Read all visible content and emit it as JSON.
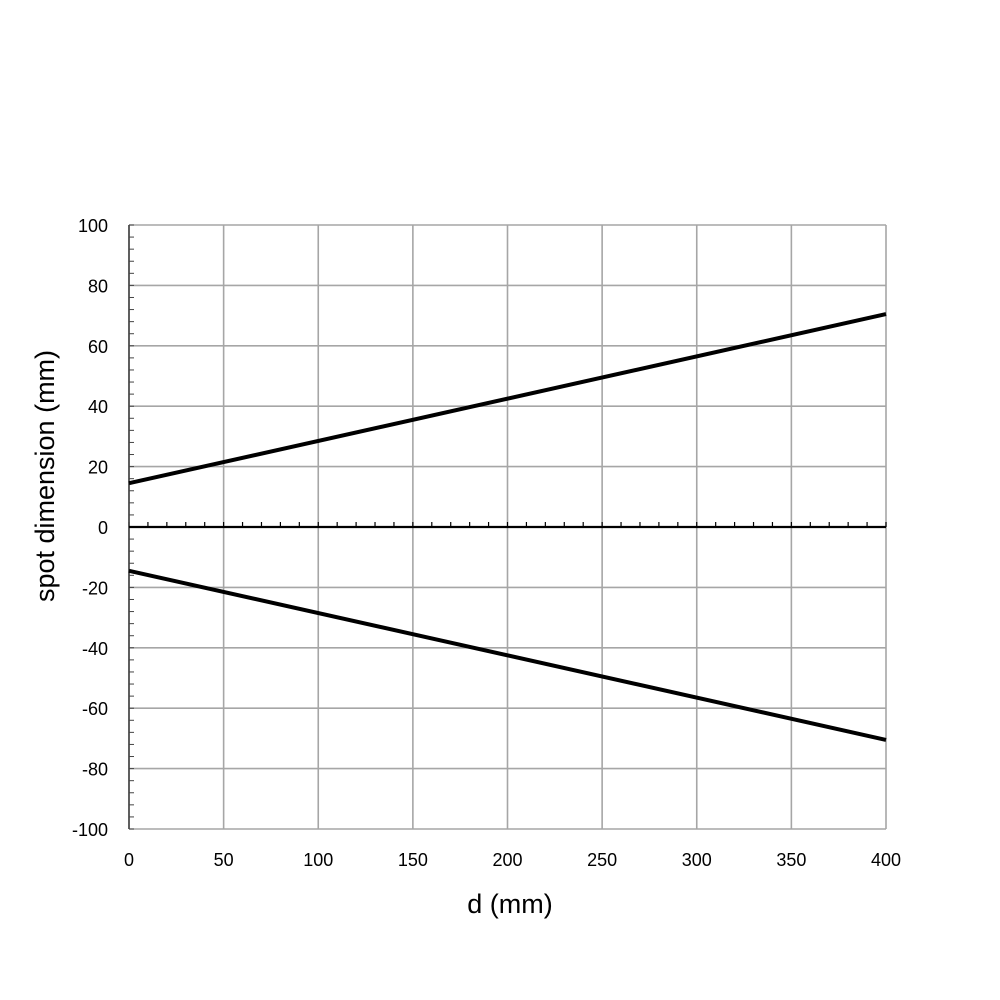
{
  "chart_data": {
    "type": "line",
    "title": "",
    "xlabel": "d (mm)",
    "ylabel": "spot dimension (mm)",
    "xlim": [
      0,
      400
    ],
    "ylim": [
      -100,
      100
    ],
    "x_ticks": [
      0,
      50,
      100,
      150,
      200,
      250,
      300,
      350,
      400
    ],
    "y_ticks": [
      -100,
      -80,
      -60,
      -40,
      -20,
      0,
      20,
      40,
      60,
      80,
      100
    ],
    "x_tick_labels": [
      "0",
      "50",
      "100",
      "150",
      "200",
      "250",
      "300",
      "350",
      "400"
    ],
    "y_tick_labels": [
      "-100",
      "-80",
      "-60",
      "-40",
      "-20",
      "0",
      "20",
      "40",
      "60",
      "80",
      "100"
    ],
    "grid": true,
    "legend": "none",
    "series": [
      {
        "x": [
          0,
          400
        ],
        "y": [
          14.5,
          70.5
        ],
        "color": "#000000"
      },
      {
        "x": [
          0,
          400
        ],
        "y": [
          -14.5,
          -70.5
        ],
        "color": "#000000"
      }
    ],
    "colors": {
      "grid": "#a6a6a6",
      "line": "#000000",
      "axis": "#000000"
    }
  }
}
